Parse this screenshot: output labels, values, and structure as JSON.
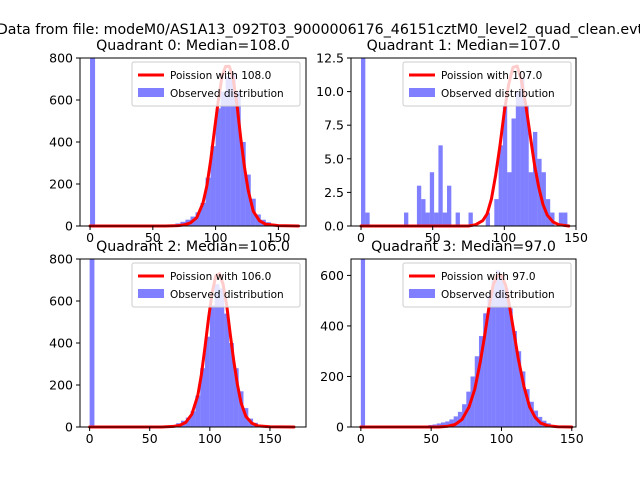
{
  "figure": {
    "suptitle": "Data from file: modeM0/AS1A13_092T03_9000006176_46151cztM0_level2_quad_clean.evt"
  },
  "colors": {
    "hist": "#0000ff",
    "fit": "#ff0000",
    "axes": "#000000"
  },
  "chart_data": [
    {
      "type": "bar",
      "title": "Quadrant 0: Median=108.0",
      "xlim": [
        -8,
        172
      ],
      "ylim": [
        0,
        800
      ],
      "xticks": [
        0,
        50,
        100,
        150
      ],
      "yticks": [
        0,
        200,
        400,
        600,
        800
      ],
      "ytick_labels": [
        "0",
        "200",
        "400",
        "600",
        "800"
      ],
      "legend": {
        "location": "upper-right",
        "entries": [
          "Poission with 108.0",
          "Observed distribution"
        ]
      },
      "histogram": {
        "bin_width": 4,
        "bins": [
          {
            "x": 0,
            "value": 800
          },
          {
            "x": 64,
            "value": 6
          },
          {
            "x": 68,
            "value": 12
          },
          {
            "x": 72,
            "value": 20
          },
          {
            "x": 76,
            "value": 30
          },
          {
            "x": 80,
            "value": 45
          },
          {
            "x": 84,
            "value": 65
          },
          {
            "x": 88,
            "value": 110
          },
          {
            "x": 92,
            "value": 230
          },
          {
            "x": 96,
            "value": 380
          },
          {
            "x": 100,
            "value": 560
          },
          {
            "x": 104,
            "value": 640
          },
          {
            "x": 108,
            "value": 710
          },
          {
            "x": 112,
            "value": 730
          },
          {
            "x": 116,
            "value": 640
          },
          {
            "x": 120,
            "value": 400
          },
          {
            "x": 124,
            "value": 245
          },
          {
            "x": 128,
            "value": 130
          },
          {
            "x": 132,
            "value": 55
          },
          {
            "x": 136,
            "value": 30
          },
          {
            "x": 140,
            "value": 18
          },
          {
            "x": 144,
            "value": 10
          },
          {
            "x": 148,
            "value": 5
          },
          {
            "x": 152,
            "value": 3
          }
        ]
      },
      "fit": {
        "name": "Poission with 108.0",
        "x": [
          0,
          60,
          70,
          75,
          80,
          85,
          90,
          93,
          96,
          99,
          102,
          105,
          108,
          111,
          114,
          117,
          120,
          123,
          126,
          130,
          135,
          140,
          150,
          166
        ],
        "y": [
          0,
          0,
          2,
          5,
          15,
          40,
          110,
          190,
          310,
          450,
          590,
          710,
          760,
          760,
          700,
          580,
          420,
          280,
          170,
          70,
          25,
          8,
          2,
          0
        ]
      }
    },
    {
      "type": "bar",
      "title": "Quadrant 1: Median=107.0",
      "xlim": [
        -7,
        150
      ],
      "ylim": [
        0,
        12.5
      ],
      "xticks": [
        0,
        50,
        100,
        150
      ],
      "yticks": [
        0,
        2.5,
        5,
        7.5,
        10,
        12.5
      ],
      "ytick_labels": [
        "0.0",
        "2.5",
        "5.0",
        "7.5",
        "10.0",
        "12.5"
      ],
      "legend": {
        "location": "upper-right",
        "entries": [
          "Poission with 107.0",
          "Observed distribution"
        ]
      },
      "histogram": {
        "bin_width": 3,
        "bins": [
          {
            "x": 0,
            "value": 12.5
          },
          {
            "x": 3,
            "value": 1
          },
          {
            "x": 30,
            "value": 1
          },
          {
            "x": 39,
            "value": 3
          },
          {
            "x": 42,
            "value": 2
          },
          {
            "x": 45,
            "value": 1
          },
          {
            "x": 48,
            "value": 4
          },
          {
            "x": 51,
            "value": 1
          },
          {
            "x": 54,
            "value": 6
          },
          {
            "x": 57,
            "value": 1
          },
          {
            "x": 60,
            "value": 3
          },
          {
            "x": 66,
            "value": 1
          },
          {
            "x": 75,
            "value": 1
          },
          {
            "x": 87,
            "value": 1
          },
          {
            "x": 93,
            "value": 2
          },
          {
            "x": 96,
            "value": 6
          },
          {
            "x": 99,
            "value": 9
          },
          {
            "x": 102,
            "value": 4
          },
          {
            "x": 105,
            "value": 8
          },
          {
            "x": 108,
            "value": 10
          },
          {
            "x": 111,
            "value": 11
          },
          {
            "x": 114,
            "value": 9
          },
          {
            "x": 117,
            "value": 4
          },
          {
            "x": 120,
            "value": 7
          },
          {
            "x": 123,
            "value": 5
          },
          {
            "x": 126,
            "value": 4
          },
          {
            "x": 129,
            "value": 2
          },
          {
            "x": 132,
            "value": 1
          },
          {
            "x": 138,
            "value": 1
          },
          {
            "x": 141,
            "value": 1
          }
        ]
      },
      "fit": {
        "name": "Poission with 107.0",
        "x": [
          0,
          75,
          80,
          85,
          88,
          91,
          94,
          97,
          100,
          103,
          106,
          109,
          112,
          115,
          118,
          121,
          124,
          127,
          130,
          134,
          138,
          145
        ],
        "y": [
          0,
          0,
          0.1,
          0.4,
          0.9,
          2,
          3.8,
          6,
          8.5,
          10.5,
          11.8,
          11.9,
          10.8,
          9,
          6.8,
          4.6,
          2.9,
          1.6,
          0.8,
          0.3,
          0.1,
          0
        ]
      }
    },
    {
      "type": "bar",
      "title": "Quadrant 2: Median=106.0",
      "xlim": [
        -8,
        180
      ],
      "ylim": [
        0,
        800
      ],
      "xticks": [
        0,
        50,
        100,
        150
      ],
      "yticks": [
        0,
        200,
        400,
        600,
        800
      ],
      "ytick_labels": [
        "0",
        "200",
        "400",
        "600",
        "800"
      ],
      "legend": {
        "location": "upper-right",
        "entries": [
          "Poission with 106.0",
          "Observed distribution"
        ]
      },
      "histogram": {
        "bin_width": 4,
        "bins": [
          {
            "x": 0,
            "value": 800
          },
          {
            "x": 64,
            "value": 5
          },
          {
            "x": 68,
            "value": 10
          },
          {
            "x": 72,
            "value": 18
          },
          {
            "x": 76,
            "value": 30
          },
          {
            "x": 80,
            "value": 45
          },
          {
            "x": 84,
            "value": 75
          },
          {
            "x": 88,
            "value": 150
          },
          {
            "x": 92,
            "value": 280
          },
          {
            "x": 96,
            "value": 430
          },
          {
            "x": 100,
            "value": 580
          },
          {
            "x": 104,
            "value": 680
          },
          {
            "x": 108,
            "value": 660
          },
          {
            "x": 112,
            "value": 540
          },
          {
            "x": 116,
            "value": 400
          },
          {
            "x": 120,
            "value": 280
          },
          {
            "x": 124,
            "value": 170
          },
          {
            "x": 128,
            "value": 90
          },
          {
            "x": 132,
            "value": 40
          },
          {
            "x": 136,
            "value": 20
          },
          {
            "x": 140,
            "value": 10
          },
          {
            "x": 144,
            "value": 5
          }
        ]
      },
      "fit": {
        "name": "Poission with 106.0",
        "x": [
          0,
          60,
          70,
          75,
          80,
          85,
          90,
          93,
          96,
          99,
          102,
          105,
          108,
          111,
          114,
          117,
          120,
          123,
          126,
          130,
          135,
          140,
          150,
          170
        ],
        "y": [
          0,
          0,
          3,
          8,
          22,
          60,
          150,
          250,
          380,
          520,
          640,
          720,
          730,
          680,
          580,
          440,
          310,
          200,
          115,
          50,
          18,
          5,
          1,
          0
        ]
      }
    },
    {
      "type": "bar",
      "title": "Quadrant 3: Median=97.0",
      "xlim": [
        -7,
        153
      ],
      "ylim": [
        0,
        665
      ],
      "xticks": [
        0,
        50,
        100,
        150
      ],
      "yticks": [
        0,
        200,
        400,
        600
      ],
      "ytick_labels": [
        "0",
        "200",
        "400",
        "600"
      ],
      "legend": {
        "location": "upper-right",
        "entries": [
          "Poission with 97.0",
          "Observed distribution"
        ]
      },
      "histogram": {
        "bin_width": 3,
        "bins": [
          {
            "x": 0,
            "value": 665
          },
          {
            "x": 45,
            "value": 5
          },
          {
            "x": 48,
            "value": 8
          },
          {
            "x": 51,
            "value": 10
          },
          {
            "x": 54,
            "value": 14
          },
          {
            "x": 57,
            "value": 18
          },
          {
            "x": 60,
            "value": 22
          },
          {
            "x": 63,
            "value": 30
          },
          {
            "x": 66,
            "value": 42
          },
          {
            "x": 69,
            "value": 60
          },
          {
            "x": 72,
            "value": 90
          },
          {
            "x": 75,
            "value": 140
          },
          {
            "x": 78,
            "value": 200
          },
          {
            "x": 81,
            "value": 280
          },
          {
            "x": 84,
            "value": 360
          },
          {
            "x": 87,
            "value": 450
          },
          {
            "x": 90,
            "value": 520
          },
          {
            "x": 93,
            "value": 580
          },
          {
            "x": 96,
            "value": 620
          },
          {
            "x": 99,
            "value": 600
          },
          {
            "x": 102,
            "value": 550
          },
          {
            "x": 105,
            "value": 470
          },
          {
            "x": 108,
            "value": 380
          },
          {
            "x": 111,
            "value": 300
          },
          {
            "x": 114,
            "value": 220
          },
          {
            "x": 117,
            "value": 150
          },
          {
            "x": 120,
            "value": 100
          },
          {
            "x": 123,
            "value": 65
          },
          {
            "x": 126,
            "value": 40
          },
          {
            "x": 129,
            "value": 25
          },
          {
            "x": 132,
            "value": 15
          },
          {
            "x": 135,
            "value": 8
          },
          {
            "x": 138,
            "value": 4
          }
        ]
      },
      "fit": {
        "name": "Poission with 97.0",
        "x": [
          0,
          55,
          62,
          67,
          72,
          77,
          81,
          85,
          88,
          91,
          94,
          97,
          100,
          103,
          106,
          109,
          112,
          116,
          120,
          124,
          128,
          133,
          140,
          150
        ],
        "y": [
          0,
          0,
          3,
          10,
          30,
          80,
          150,
          260,
          360,
          470,
          560,
          600,
          600,
          560,
          470,
          370,
          270,
          160,
          80,
          38,
          15,
          5,
          1,
          0
        ]
      }
    }
  ]
}
